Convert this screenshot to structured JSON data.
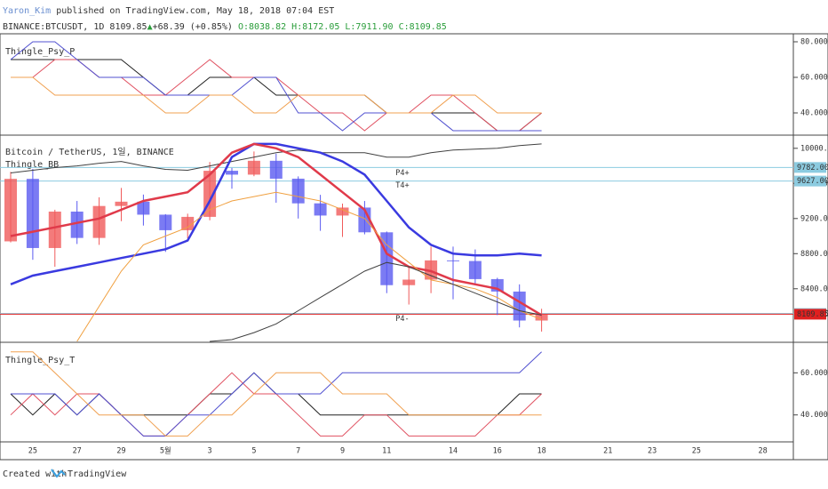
{
  "chart_data": {
    "type": "candlestick",
    "header": {
      "author": "Yaron_Kim",
      "published": "published on TradingView.com, May 18, 2018 07:04 EST",
      "symbol": "BINANCE:BTCUSDT, 1D",
      "last": "8109.85",
      "arrow": "▲",
      "change": "+68.39 (+0.85%)",
      "open": "O:8038.82",
      "high": "H:8172.05",
      "low": "L:7911.90",
      "close": "C:8109.85"
    },
    "footer": {
      "created": "Created with",
      "brand": "TradingView"
    },
    "categories": [
      null,
      "25",
      null,
      "27",
      null,
      "29",
      null,
      "5월",
      null,
      "3",
      null,
      "5",
      null,
      "7",
      null,
      "9",
      null,
      "11",
      null,
      null,
      "14",
      null,
      "16",
      null,
      "18",
      null,
      null,
      "21",
      null,
      "23",
      null,
      "25",
      null,
      null,
      "28",
      null
    ],
    "up_color": "#f05a5a",
    "down_color": "#5a5af0",
    "main": {
      "title": "Bitcoin / TetherUS, 1일, BINANCE",
      "indicator": "Thingle_BB",
      "ylim": [
        7790,
        10150
      ],
      "yticks": [
        {
          "value": 10000,
          "label": "10000.00"
        },
        {
          "value": 9600,
          "label": "9600.00"
        },
        {
          "value": 9200,
          "label": "9200.00"
        },
        {
          "value": 8800,
          "label": "8800.00"
        },
        {
          "value": 8400,
          "label": "8400.00"
        }
      ],
      "open": [
        8940,
        9652,
        8864,
        9279,
        8979,
        9343,
        9392,
        9244,
        9067,
        9219,
        9744,
        9700,
        9858,
        9654,
        9373,
        9234,
        9325,
        9043,
        8441,
        8504,
        8723,
        8716,
        8510,
        8368,
        8038,
        null,
        null,
        null,
        null,
        null,
        null,
        null,
        null,
        null,
        null,
        null
      ],
      "high": [
        9732,
        9765,
        9300,
        9400,
        9442,
        9549,
        9473,
        9250,
        9255,
        9844,
        9777,
        9964,
        9939,
        9680,
        9470,
        9370,
        9400,
        9052,
        8650,
        8880,
        8880,
        8848,
        8525,
        8450,
        8172,
        null,
        null,
        null,
        null,
        null,
        null,
        null,
        null,
        null,
        null,
        null
      ],
      "low": [
        8928,
        8730,
        8651,
        8910,
        8900,
        9170,
        9120,
        8820,
        8975,
        9180,
        9540,
        9682,
        9380,
        9200,
        9060,
        8990,
        9020,
        8350,
        8220,
        8350,
        8280,
        8460,
        8100,
        7960,
        7912,
        null,
        null,
        null,
        null,
        null,
        null,
        null,
        null,
        null,
        null,
        null
      ],
      "close": [
        9652,
        8864,
        9279,
        8979,
        9343,
        9392,
        9244,
        9067,
        9219,
        9744,
        9700,
        9858,
        9654,
        9373,
        9234,
        9325,
        9043,
        8441,
        8504,
        8723,
        8716,
        8510,
        8368,
        8038,
        8110,
        null,
        null,
        null,
        null,
        null,
        null,
        null,
        null,
        null,
        null,
        null
      ],
      "series": [
        {
          "color": "#404040",
          "values": [
            9720,
            9750,
            9780,
            9800,
            9830,
            9850,
            9800,
            9760,
            9750,
            9800,
            9850,
            9900,
            9950,
            9980,
            9950,
            9950,
            9950,
            9900,
            9900,
            9950,
            9980,
            9990,
            10000,
            10030,
            10050,
            null,
            null,
            null,
            null,
            null,
            null,
            null,
            null,
            null,
            null,
            null
          ]
        },
        {
          "color": "#3a3ae0",
          "values": [
            8450,
            8550,
            8600,
            8650,
            8700,
            8750,
            8800,
            8850,
            8950,
            9400,
            9900,
            10050,
            10050,
            10000,
            9950,
            9850,
            9700,
            9400,
            9100,
            8900,
            8800,
            8780,
            8780,
            8800,
            8780,
            null,
            null,
            null,
            null,
            null,
            null,
            null,
            null,
            null,
            null,
            null
          ]
        },
        {
          "color": "#e03a4a",
          "values": [
            9000,
            9050,
            9100,
            9150,
            9200,
            9300,
            9400,
            9450,
            9500,
            9700,
            9950,
            10050,
            10000,
            9900,
            9700,
            9500,
            9300,
            8800,
            8650,
            8600,
            8500,
            8450,
            8400,
            8250,
            8100,
            null,
            null,
            null,
            null,
            null,
            null,
            null,
            null,
            null,
            null,
            null
          ]
        },
        {
          "color": "#f0a040",
          "values": [
            null,
            null,
            null,
            7800,
            8200,
            8600,
            8900,
            9000,
            9100,
            9300,
            9400,
            9450,
            9500,
            9450,
            9400,
            9300,
            9200,
            8900,
            8700,
            8500,
            8450,
            8400,
            8300,
            8150,
            8050,
            null,
            null,
            null,
            null,
            null,
            null,
            null,
            null,
            null,
            null,
            null
          ]
        },
        {
          "color": "#404040",
          "values": [
            null,
            null,
            null,
            null,
            null,
            null,
            null,
            null,
            null,
            7800,
            7820,
            7900,
            8000,
            8150,
            8300,
            8450,
            8600,
            8700,
            8650,
            8550,
            8450,
            8350,
            8250,
            8150,
            8100,
            null,
            null,
            null,
            null,
            null,
            null,
            null,
            null,
            null,
            null,
            null
          ]
        }
      ],
      "price_lines": [
        {
          "value": 9782,
          "label": "9782.00",
          "color": "#8ccbe0"
        },
        {
          "value": 9627,
          "label": "9627.00",
          "color": "#8ccbe0"
        },
        {
          "value": 8118,
          "label": "8118.00",
          "color": "#8ccbe0"
        },
        {
          "value": 8109.85,
          "label": "8109.85",
          "color": "#e02020"
        }
      ],
      "annotations": [
        {
          "text": "P4+",
          "value": 9720,
          "day": 17
        },
        {
          "text": "T4+",
          "value": 9580,
          "day": 17
        },
        {
          "text": "P4-",
          "value": 8060,
          "day": 17
        }
      ]
    },
    "panes": [
      {
        "title": "Thingle_Psy_P",
        "ylim": [
          27.5,
          84.5
        ],
        "yticks": [
          {
            "value": 80,
            "label": "80.0000"
          },
          {
            "value": 60,
            "label": "60.0000"
          },
          {
            "value": 40,
            "label": "40.0000"
          }
        ],
        "series": [
          {
            "color": "#202020",
            "values": [
              70,
              70,
              70,
              70,
              70,
              70,
              60,
              50,
              50,
              60,
              60,
              60,
              50,
              50,
              50,
              50,
              50,
              40,
              40,
              40,
              40,
              40,
              30,
              30,
              40,
              null,
              null,
              null,
              null,
              null,
              null,
              null,
              null,
              null,
              null,
              null
            ]
          },
          {
            "color": "#e05060",
            "values": [
              60,
              60,
              70,
              70,
              60,
              60,
              50,
              50,
              60,
              70,
              60,
              60,
              60,
              50,
              40,
              40,
              30,
              40,
              40,
              50,
              50,
              40,
              30,
              30,
              40,
              null,
              null,
              null,
              null,
              null,
              null,
              null,
              null,
              null,
              null,
              null
            ]
          },
          {
            "color": "#5050d0",
            "values": [
              70,
              80,
              80,
              70,
              60,
              60,
              60,
              50,
              50,
              50,
              50,
              60,
              60,
              40,
              40,
              30,
              40,
              40,
              40,
              40,
              30,
              30,
              30,
              30,
              30,
              null,
              null,
              null,
              null,
              null,
              null,
              null,
              null,
              null,
              null,
              null
            ]
          },
          {
            "color": "#f0a050",
            "values": [
              60,
              60,
              50,
              50,
              50,
              50,
              50,
              40,
              40,
              50,
              50,
              40,
              40,
              50,
              50,
              50,
              50,
              40,
              40,
              40,
              50,
              50,
              40,
              40,
              40,
              null,
              null,
              null,
              null,
              null,
              null,
              null,
              null,
              null,
              null,
              null
            ]
          }
        ]
      },
      {
        "title": "Thingle_Psy_T",
        "ylim": [
          27.2,
          74.5
        ],
        "yticks": [
          {
            "value": 60,
            "label": "60.0000"
          },
          {
            "value": 40,
            "label": "40.0000"
          }
        ],
        "series": [
          {
            "color": "#202020",
            "values": [
              50,
              40,
              50,
              40,
              50,
              40,
              40,
              40,
              40,
              50,
              50,
              60,
              50,
              50,
              40,
              40,
              40,
              40,
              40,
              40,
              40,
              40,
              40,
              50,
              50,
              null,
              null,
              null,
              null,
              null,
              null,
              null,
              null,
              null,
              null,
              null
            ]
          },
          {
            "color": "#e05060",
            "values": [
              40,
              50,
              40,
              50,
              50,
              40,
              30,
              30,
              40,
              50,
              60,
              50,
              50,
              40,
              30,
              30,
              40,
              40,
              30,
              30,
              30,
              30,
              40,
              40,
              50,
              null,
              null,
              null,
              null,
              null,
              null,
              null,
              null,
              null,
              null,
              null
            ]
          },
          {
            "color": "#5050d0",
            "values": [
              50,
              50,
              50,
              40,
              50,
              40,
              30,
              30,
              40,
              40,
              50,
              60,
              50,
              50,
              50,
              60,
              60,
              60,
              60,
              60,
              60,
              60,
              60,
              60,
              70,
              null,
              null,
              null,
              null,
              null,
              null,
              null,
              null,
              null,
              null,
              null
            ]
          },
          {
            "color": "#f0a050",
            "values": [
              70,
              70,
              60,
              50,
              40,
              40,
              40,
              30,
              30,
              40,
              40,
              50,
              60,
              60,
              60,
              50,
              50,
              50,
              40,
              40,
              40,
              40,
              40,
              40,
              40,
              null,
              null,
              null,
              null,
              null,
              null,
              null,
              null,
              null,
              null,
              null
            ]
          }
        ]
      }
    ]
  }
}
